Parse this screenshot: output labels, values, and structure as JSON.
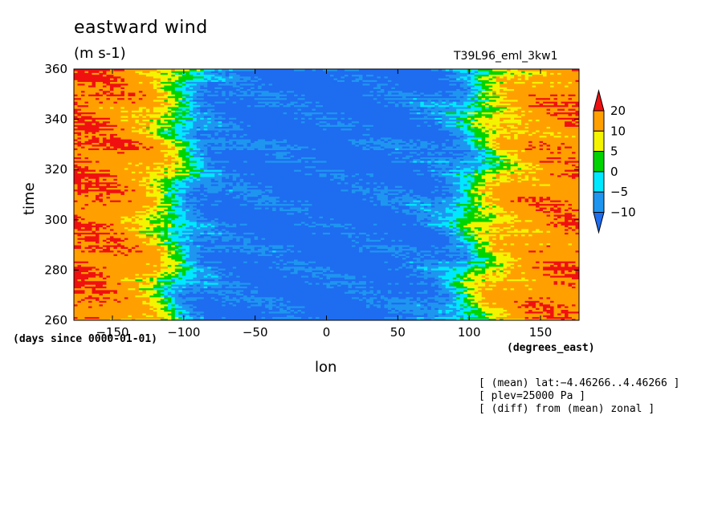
{
  "chart_data": {
    "type": "heatmap",
    "title": "eastward wind",
    "units": "(m s-1)",
    "run_id": "T39L96_eml_3kw1",
    "xlabel": "lon",
    "ylabel": "time",
    "x_units": "(degrees_east)",
    "y_units": "(days since 0000-01-01)",
    "xlim": [
      -177,
      177
    ],
    "ylim": [
      260,
      360
    ],
    "x_ticks": [
      -150,
      -100,
      -50,
      0,
      50,
      100,
      150
    ],
    "y_ticks": [
      260,
      280,
      300,
      320,
      340,
      360
    ],
    "x_tick_labels": [
      "−150",
      "−100",
      "−50",
      "0",
      "50",
      "100",
      "150"
    ],
    "colorbar": {
      "levels": [
        -10,
        -5,
        0,
        5,
        10,
        20
      ],
      "level_labels": [
        "−10",
        "−5",
        "0",
        "5",
        "10",
        "20"
      ],
      "colors": [
        "#1e6cf0",
        "#1e96f0",
        "#00e8ff",
        "#00d400",
        "#f4f400",
        "#ffa000",
        "#f01010",
        "#f01010"
      ],
      "extend": "both"
    },
    "profile_description_values": {
      "lon": [
        -177,
        -150,
        -125,
        -110,
        -100,
        -90,
        -70,
        -50,
        0,
        50,
        80,
        95,
        105,
        120,
        140,
        160,
        177
      ],
      "wind": [
        20,
        18,
        12,
        5,
        -2,
        -8,
        -12,
        -13,
        -14,
        -13,
        -10,
        -5,
        2,
        9,
        14,
        17,
        18
      ]
    },
    "notes": [
      "[ (mean) lat:−4.46266..4.46266 ]",
      "[ plev=25000 Pa ]",
      "[ (diff) from (mean) zonal ]"
    ]
  }
}
